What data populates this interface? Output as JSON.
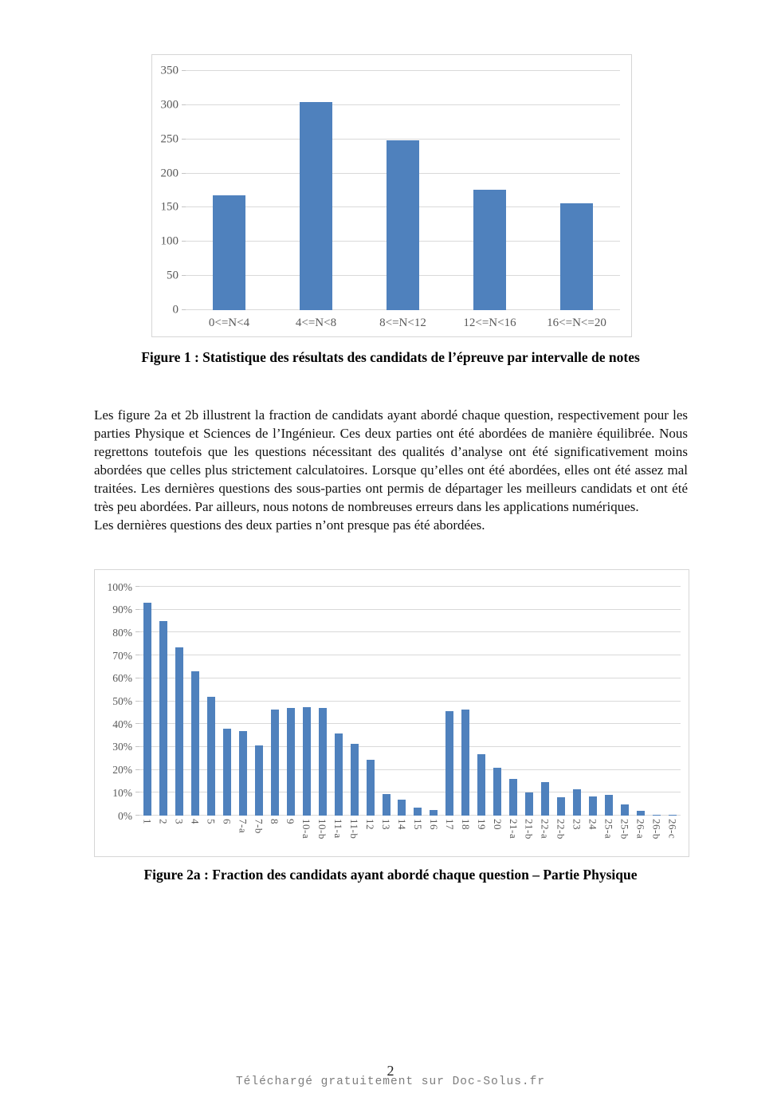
{
  "page": {
    "number": "2",
    "footer_text": "Téléchargé gratuitement sur Doc-Solus.fr"
  },
  "figures": {
    "fig1_caption": "Figure 1 : Statistique des résultats des candidats de l’épreuve par intervalle de notes",
    "fig2a_caption": "Figure 2a : Fraction des candidats ayant abordé chaque question – Partie Physique"
  },
  "body_text": {
    "para1": "Les figure 2a et 2b illustrent la fraction de candidats ayant abordé chaque question, respectivement pour les parties Physique et Sciences de l’Ingénieur. Ces deux parties ont été abordées de manière équilibrée. Nous regrettons toutefois que les questions nécessitant des qualités d’analyse ont été significativement moins abordées que celles plus strictement calculatoires. Lorsque qu’elles ont été abordées, elles ont été assez mal traitées. Les dernières questions des sous-parties ont permis de départager les meilleurs candidats et ont été très peu abordées. Par ailleurs, nous notons de nombreuses erreurs dans les applications numériques.",
    "para2": "Les dernières questions des deux parties n’ont presque pas été abordées."
  },
  "chart_data": [
    {
      "id": "fig1",
      "type": "bar",
      "title": "",
      "xlabel": "",
      "ylabel": "",
      "categories": [
        "0<=N<4",
        "4<=N<8",
        "8<=N<12",
        "12<=N<16",
        "16<=N<=20"
      ],
      "values": [
        168,
        305,
        249,
        176,
        156
      ],
      "ylim": [
        0,
        350
      ],
      "ytick_step": 50,
      "ytick_suffix": "",
      "grid": true,
      "legend": null,
      "bar_color": "#4f81bd",
      "bar_width_pct": 38,
      "xtick_rotation": 0
    },
    {
      "id": "fig2a",
      "type": "bar",
      "title": "",
      "xlabel": "",
      "ylabel": "",
      "categories": [
        "1",
        "2",
        "3",
        "4",
        "5",
        "6",
        "7-a",
        "7-b",
        "8",
        "9",
        "10-a",
        "10-b",
        "11-a",
        "11-b",
        "12",
        "13",
        "14",
        "15",
        "16",
        "17",
        "18",
        "19",
        "20",
        "21-a",
        "21-b",
        "22-a",
        "22-b",
        "23",
        "24",
        "25-a",
        "25-b",
        "26-a",
        "26-b",
        "26-c"
      ],
      "values": [
        93,
        85,
        73.5,
        63,
        52,
        38,
        37,
        30.5,
        46.5,
        47,
        47.5,
        47,
        36,
        31.5,
        24.5,
        9.5,
        7,
        3.5,
        2.5,
        45.5,
        46.5,
        27,
        21,
        16,
        10,
        14.5,
        8,
        11.5,
        8.5,
        9,
        5,
        2,
        0.5,
        0.5
      ],
      "ylim": [
        0,
        100
      ],
      "ytick_step": 10,
      "ytick_suffix": "%",
      "grid": true,
      "legend": null,
      "bar_color": "#4f81bd",
      "bar_width_pct": 50,
      "xtick_rotation": 90
    }
  ]
}
